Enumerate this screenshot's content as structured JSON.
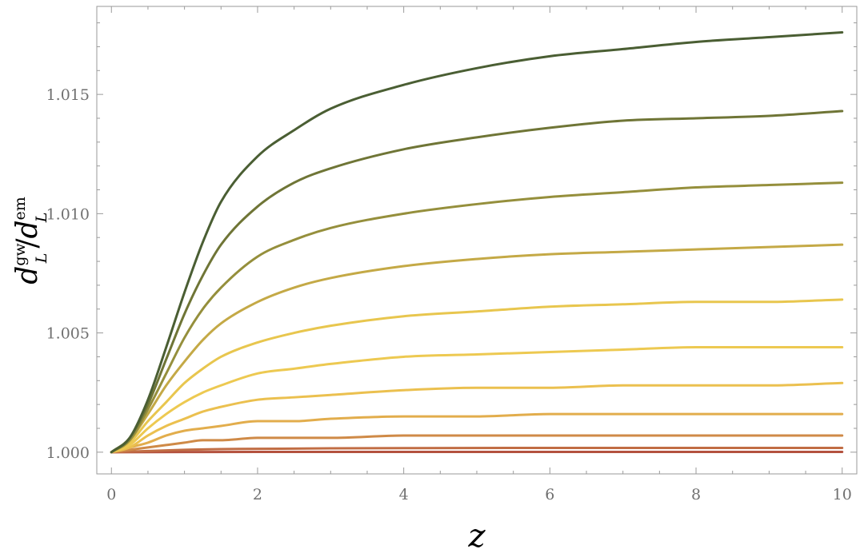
{
  "chart_data": {
    "type": "line",
    "title": "",
    "xlabel": "z",
    "ylabel": {
      "base": "d",
      "sup_num": "gw",
      "sub_num": "L",
      "sep": "/",
      "sup_den": "em",
      "sub_den": "L"
    },
    "xlim": [
      -0.2,
      10.2
    ],
    "ylim": [
      0.99909,
      1.01869
    ],
    "x_ticks": [
      0,
      2,
      4,
      6,
      8,
      10
    ],
    "x_tick_labels": [
      "0",
      "2",
      "4",
      "6",
      "8",
      "10"
    ],
    "y_ticks": [
      1.0,
      1.005,
      1.01,
      1.015
    ],
    "y_tick_labels": [
      "1.000",
      "1.005",
      "1.010",
      "1.015"
    ],
    "grid": false,
    "legend": "none",
    "series": [
      {
        "color": "#4a5e33",
        "values": [
          [
            0,
            1.0
          ],
          [
            0.25,
            1.0006
          ],
          [
            0.5,
            1.0022
          ],
          [
            0.75,
            1.0044
          ],
          [
            1,
            1.0067
          ],
          [
            1.25,
            1.0088
          ],
          [
            1.5,
            1.0105
          ],
          [
            2,
            1.0124
          ],
          [
            2.5,
            1.0135
          ],
          [
            3,
            1.0144
          ],
          [
            4,
            1.0154
          ],
          [
            5,
            1.0161
          ],
          [
            6,
            1.0166
          ],
          [
            7,
            1.0169
          ],
          [
            8,
            1.0172
          ],
          [
            9,
            1.0174
          ],
          [
            10,
            1.0176
          ]
        ]
      },
      {
        "color": "#6f7536",
        "values": [
          [
            0,
            1.0
          ],
          [
            0.25,
            1.0006
          ],
          [
            0.5,
            1.002
          ],
          [
            0.75,
            1.0039
          ],
          [
            1,
            1.0058
          ],
          [
            1.25,
            1.0074
          ],
          [
            1.5,
            1.0087
          ],
          [
            2,
            1.0103
          ],
          [
            2.5,
            1.0113
          ],
          [
            3,
            1.0119
          ],
          [
            4,
            1.0127
          ],
          [
            5,
            1.0132
          ],
          [
            6,
            1.0136
          ],
          [
            7,
            1.0139
          ],
          [
            8,
            1.014
          ],
          [
            9,
            1.0141
          ],
          [
            10,
            1.0143
          ]
        ]
      },
      {
        "color": "#958f3c",
        "values": [
          [
            0,
            1.0
          ],
          [
            0.25,
            1.0005
          ],
          [
            0.5,
            1.0018
          ],
          [
            0.75,
            1.0033
          ],
          [
            1,
            1.0048
          ],
          [
            1.25,
            1.006
          ],
          [
            1.5,
            1.0069
          ],
          [
            2,
            1.0082
          ],
          [
            2.5,
            1.0089
          ],
          [
            3,
            1.0094
          ],
          [
            4,
            1.01
          ],
          [
            5,
            1.0104
          ],
          [
            6,
            1.0107
          ],
          [
            7,
            1.0109
          ],
          [
            8,
            1.0111
          ],
          [
            9,
            1.0112
          ],
          [
            10,
            1.0113
          ]
        ]
      },
      {
        "color": "#c4a946",
        "values": [
          [
            0,
            1.0
          ],
          [
            0.25,
            1.0005
          ],
          [
            0.5,
            1.0016
          ],
          [
            0.75,
            1.0028
          ],
          [
            1,
            1.0038
          ],
          [
            1.25,
            1.0047
          ],
          [
            1.5,
            1.0054
          ],
          [
            2,
            1.0063
          ],
          [
            2.5,
            1.0069
          ],
          [
            3,
            1.0073
          ],
          [
            4,
            1.0078
          ],
          [
            5,
            1.0081
          ],
          [
            6,
            1.0083
          ],
          [
            7,
            1.0084
          ],
          [
            8,
            1.0085
          ],
          [
            9,
            1.0086
          ],
          [
            10,
            1.0087
          ]
        ]
      },
      {
        "color": "#e8c64e",
        "values": [
          [
            0,
            1.0
          ],
          [
            0.25,
            1.0004
          ],
          [
            0.5,
            1.0013
          ],
          [
            0.75,
            1.0021
          ],
          [
            1,
            1.0029
          ],
          [
            1.25,
            1.0035
          ],
          [
            1.5,
            1.004
          ],
          [
            2,
            1.0046
          ],
          [
            2.5,
            1.005
          ],
          [
            3,
            1.0053
          ],
          [
            4,
            1.0057
          ],
          [
            5,
            1.0059
          ],
          [
            6,
            1.0061
          ],
          [
            7,
            1.0062
          ],
          [
            8,
            1.0063
          ],
          [
            9,
            1.0063
          ],
          [
            10,
            1.0064
          ]
        ]
      },
      {
        "color": "#edc951",
        "values": [
          [
            0,
            1.0
          ],
          [
            0.25,
            1.0003
          ],
          [
            0.5,
            1.001
          ],
          [
            0.75,
            1.0016
          ],
          [
            1,
            1.0021
          ],
          [
            1.25,
            1.0025
          ],
          [
            1.5,
            1.0028
          ],
          [
            2,
            1.0033
          ],
          [
            2.5,
            1.0035
          ],
          [
            3,
            1.0037
          ],
          [
            4,
            1.004
          ],
          [
            5,
            1.0041
          ],
          [
            6,
            1.0042
          ],
          [
            7,
            1.0043
          ],
          [
            8,
            1.0044
          ],
          [
            9,
            1.0044
          ],
          [
            10,
            1.0044
          ]
        ]
      },
      {
        "color": "#ebc04f",
        "values": [
          [
            0,
            1.0
          ],
          [
            0.25,
            1.0002
          ],
          [
            0.5,
            1.0007
          ],
          [
            0.75,
            1.0011
          ],
          [
            1,
            1.0014
          ],
          [
            1.25,
            1.0017
          ],
          [
            1.5,
            1.0019
          ],
          [
            2,
            1.0022
          ],
          [
            2.5,
            1.0023
          ],
          [
            3,
            1.0024
          ],
          [
            4,
            1.0026
          ],
          [
            5,
            1.0027
          ],
          [
            6,
            1.0027
          ],
          [
            7,
            1.0028
          ],
          [
            8,
            1.0028
          ],
          [
            9,
            1.0028
          ],
          [
            10,
            1.0029
          ]
        ]
      },
      {
        "color": "#e2ad4c",
        "values": [
          [
            0,
            1.0
          ],
          [
            0.25,
            1.0002
          ],
          [
            0.5,
            1.0004
          ],
          [
            0.75,
            1.0007
          ],
          [
            1,
            1.0009
          ],
          [
            1.25,
            1.001
          ],
          [
            1.5,
            1.0011
          ],
          [
            2,
            1.0013
          ],
          [
            2.5,
            1.0013
          ],
          [
            3,
            1.0014
          ],
          [
            4,
            1.0015
          ],
          [
            5,
            1.0015
          ],
          [
            6,
            1.0016
          ],
          [
            7,
            1.0016
          ],
          [
            8,
            1.0016
          ],
          [
            9,
            1.0016
          ],
          [
            10,
            1.0016
          ]
        ]
      },
      {
        "color": "#cf8a47",
        "values": [
          [
            0,
            1.0
          ],
          [
            0.25,
            1.0001
          ],
          [
            0.5,
            1.0002
          ],
          [
            0.75,
            1.0003
          ],
          [
            1,
            1.0004
          ],
          [
            1.25,
            1.0005
          ],
          [
            1.5,
            1.0005
          ],
          [
            2,
            1.0006
          ],
          [
            2.5,
            1.0006
          ],
          [
            3,
            1.0006
          ],
          [
            4,
            1.0007
          ],
          [
            5,
            1.0007
          ],
          [
            6,
            1.0007
          ],
          [
            7,
            1.0007
          ],
          [
            8,
            1.0007
          ],
          [
            9,
            1.0007
          ],
          [
            10,
            1.0007
          ]
        ]
      },
      {
        "color": "#c16d44",
        "values": [
          [
            0,
            1.0
          ],
          [
            0.5,
            1.00005
          ],
          [
            1,
            1.0001
          ],
          [
            1.5,
            1.00013
          ],
          [
            2,
            1.00014
          ],
          [
            3,
            1.00016
          ],
          [
            4,
            1.00017
          ],
          [
            6,
            1.00018
          ],
          [
            8,
            1.00018
          ],
          [
            10,
            1.00018
          ]
        ]
      },
      {
        "color": "#b4523f",
        "values": [
          [
            0,
            1.0
          ],
          [
            2,
            1.00001
          ],
          [
            4,
            1.00001
          ],
          [
            6,
            1.00001
          ],
          [
            8,
            1.00001
          ],
          [
            10,
            1.00001
          ]
        ]
      }
    ]
  }
}
